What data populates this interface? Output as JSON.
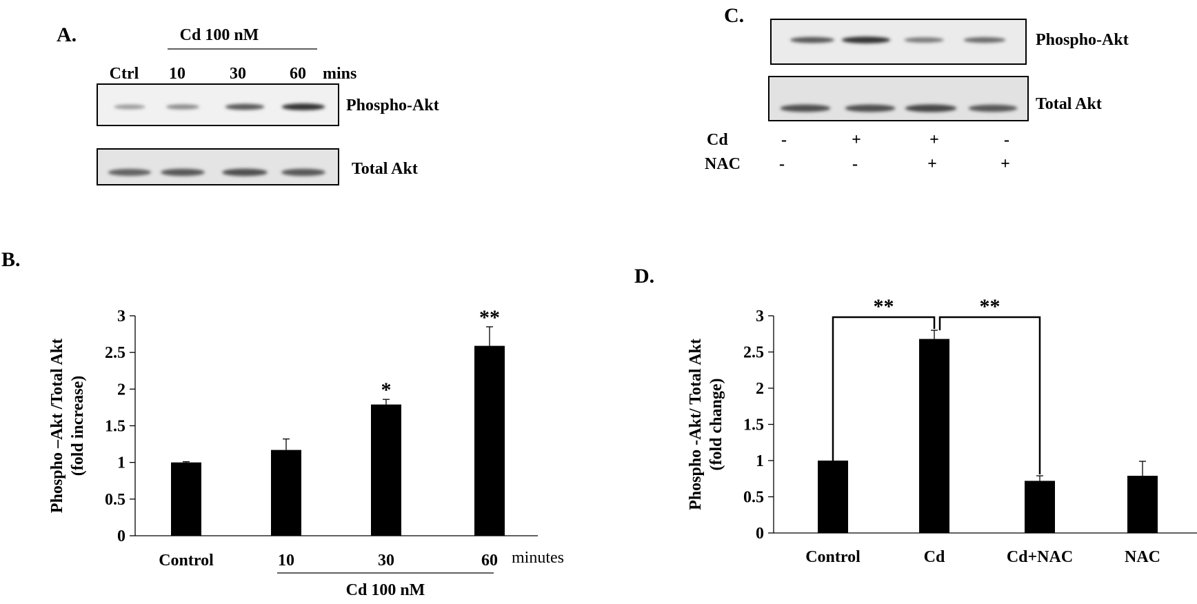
{
  "panels": {
    "A": {
      "letter": "A.",
      "treatment_label": "Cd 100 nM",
      "lane_labels": [
        "Ctrl",
        "10",
        "30",
        "60"
      ],
      "unit_label": "mins",
      "blot_labels": [
        "Phospho-Akt",
        "Total Akt"
      ],
      "phospho_band_intensity": [
        0.35,
        0.45,
        0.75,
        0.95
      ],
      "total_band_intensity": [
        0.7,
        0.75,
        0.8,
        0.75
      ]
    },
    "C": {
      "letter": "C.",
      "blot_labels": [
        "Phospho-Akt",
        "Total Akt"
      ],
      "row_labels": [
        "Cd",
        "NAC"
      ],
      "cd_signs": [
        "-",
        "+",
        "+",
        "-"
      ],
      "nac_signs": [
        "-",
        "-",
        "+",
        "+"
      ],
      "phospho_band_intensity": [
        0.75,
        0.95,
        0.55,
        0.65
      ],
      "total_band_intensity": [
        0.8,
        0.8,
        0.85,
        0.75
      ]
    },
    "B": {
      "letter": "B."
    },
    "D": {
      "letter": "D."
    }
  },
  "chart_data": [
    {
      "type": "bar",
      "panel": "B",
      "categories": [
        "Control",
        "10",
        "30",
        "60"
      ],
      "values": [
        1.0,
        1.17,
        1.79,
        2.59
      ],
      "errors": [
        0.01,
        0.15,
        0.07,
        0.26
      ],
      "significance": [
        "",
        "",
        "*",
        "**"
      ],
      "ylabel_line1": "Phospho –Akt /Total Akt",
      "ylabel_line2": "(fold increase)",
      "yticks": [
        "0",
        "0.5",
        "1",
        "1.5",
        "2",
        "2.5",
        "3"
      ],
      "ylim": [
        0,
        3
      ],
      "x_unit_label": "minutes",
      "group_label": "Cd 100 nM",
      "bar_color": "#000000"
    },
    {
      "type": "bar",
      "panel": "D",
      "categories": [
        "Control",
        "Cd",
        "Cd+NAC",
        "NAC"
      ],
      "values": [
        1.0,
        2.68,
        0.72,
        0.79
      ],
      "errors": [
        0.0,
        0.12,
        0.07,
        0.2
      ],
      "comparisons": [
        {
          "from": 0,
          "to": 1,
          "label": "**"
        },
        {
          "from": 1,
          "to": 2,
          "label": "**"
        }
      ],
      "ylabel_line1": "Phospho -Akt/ Total Akt",
      "ylabel_line2": "(fold change)",
      "yticks": [
        "0",
        "0.5",
        "1",
        "1.5",
        "2",
        "2.5",
        "3"
      ],
      "ylim": [
        0,
        3
      ],
      "bar_color": "#000000"
    }
  ]
}
